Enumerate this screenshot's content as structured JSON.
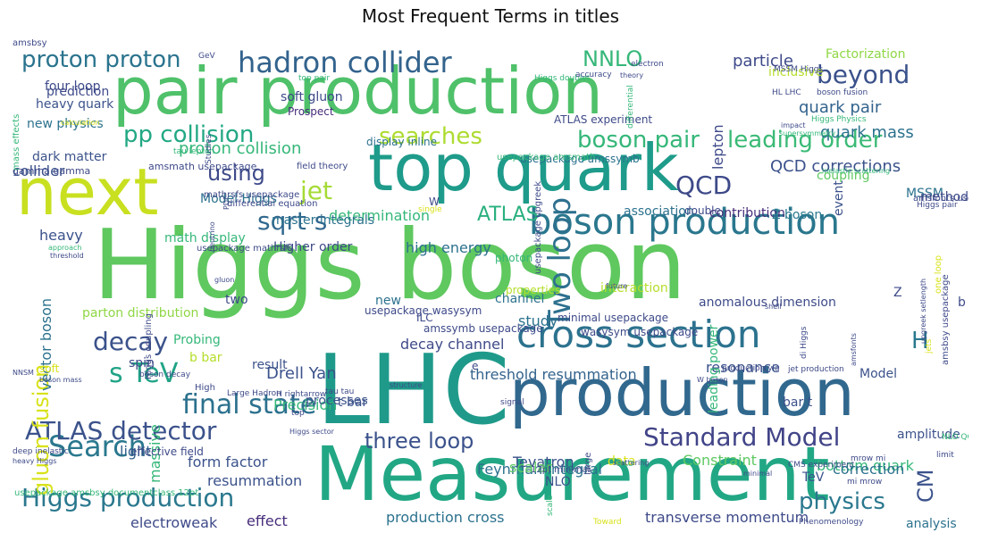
{
  "title": "Most Frequent Terms in titles",
  "words": [
    {
      "text": "Higgs boson",
      "color": "#5fc85f"
    },
    {
      "text": "pair production",
      "color": "#4fc16a"
    },
    {
      "text": "LHC",
      "color": "#1f9a8a"
    },
    {
      "text": "Measurement",
      "color": "#22a785"
    },
    {
      "text": "top quark",
      "color": "#1e9b8a"
    },
    {
      "text": "next",
      "color": "#c8e020"
    },
    {
      "text": "production",
      "color": "#31688e"
    },
    {
      "text": "cross section",
      "color": "#2c728e"
    },
    {
      "text": "boson production",
      "color": "#2a778e"
    },
    {
      "text": "hadron collider",
      "color": "#33638d"
    },
    {
      "text": "Search",
      "color": "#2a788e"
    },
    {
      "text": "ATLAS detector",
      "color": "#3b528b"
    },
    {
      "text": "Higgs production",
      "color": "#2a788e"
    },
    {
      "text": "Standard Model",
      "color": "#414487"
    },
    {
      "text": "final state",
      "color": "#2c718e"
    },
    {
      "text": "s TeV",
      "color": "#20a386"
    },
    {
      "text": "proton proton",
      "color": "#2b748e"
    },
    {
      "text": "pp collision",
      "color": "#22a884"
    },
    {
      "text": "sqrt s",
      "color": "#31688e"
    },
    {
      "text": "Two loop",
      "color": "#2d708e"
    },
    {
      "text": "boson pair",
      "color": "#35b779"
    },
    {
      "text": "leading order",
      "color": "#3aba76"
    },
    {
      "text": "searches",
      "color": "#addc30"
    },
    {
      "text": "QCD",
      "color": "#3e4a89"
    },
    {
      "text": "decay",
      "color": "#3b528b"
    },
    {
      "text": "physics",
      "color": "#2a788e"
    },
    {
      "text": "three loop",
      "color": "#3b528b"
    },
    {
      "text": "beyond",
      "color": "#3b528b"
    },
    {
      "text": "NNLO",
      "color": "#35b779"
    },
    {
      "text": "jet",
      "color": "#a5db36"
    },
    {
      "text": "using",
      "color": "#3e4a89"
    },
    {
      "text": "ATLAS",
      "color": "#2ab07f"
    },
    {
      "text": "gluon fusion",
      "color": "#d8e219"
    },
    {
      "text": "H",
      "color": "#2a788e"
    },
    {
      "text": "CM",
      "color": "#3b528b"
    },
    {
      "text": "QCD corrections",
      "color": "#3b528b"
    },
    {
      "text": "proton collision",
      "color": "#35b779"
    },
    {
      "text": "particle",
      "color": "#3e4a89"
    },
    {
      "text": "quark pair",
      "color": "#33638d"
    },
    {
      "text": "quark mass",
      "color": "#2c728e"
    },
    {
      "text": "Drell Yan",
      "color": "#3b528b"
    },
    {
      "text": "Precision",
      "color": "#35b779"
    },
    {
      "text": "Feynman integral",
      "color": "#2c728e"
    },
    {
      "text": "Tevatron",
      "color": "#3b528b"
    },
    {
      "text": "bottom quark",
      "color": "#35b779"
    },
    {
      "text": "correction",
      "color": "#2c728e"
    },
    {
      "text": "transverse momentum",
      "color": "#3e4a89"
    },
    {
      "text": "production cross",
      "color": "#2c728e"
    },
    {
      "text": "electroweak",
      "color": "#3e4a89"
    },
    {
      "text": "effect",
      "color": "#472d7b"
    },
    {
      "text": "analysis",
      "color": "#2c728e"
    },
    {
      "text": "resummation",
      "color": "#3b528b"
    },
    {
      "text": "form factor",
      "color": "#3b528b"
    },
    {
      "text": "light",
      "color": "#33638d"
    },
    {
      "text": "Constraint",
      "color": "#5ec962"
    },
    {
      "text": "data",
      "color": "#d8e219"
    },
    {
      "text": "scalar",
      "color": "#5ec962"
    },
    {
      "text": "amplitude",
      "color": "#3b528b"
    },
    {
      "text": "threshold resummation",
      "color": "#33638d"
    },
    {
      "text": "resonance",
      "color": "#3b528b"
    },
    {
      "text": "decay channel",
      "color": "#3e4a89"
    },
    {
      "text": "study",
      "color": "#2c728e"
    },
    {
      "text": "high energy",
      "color": "#2c728e"
    },
    {
      "text": "determination",
      "color": "#35b779"
    },
    {
      "text": "association",
      "color": "#2c728e"
    },
    {
      "text": "contribution",
      "color": "#472d7b"
    },
    {
      "text": "Z boson",
      "color": "#2a788e"
    },
    {
      "text": "MSSM",
      "color": "#2c728e"
    },
    {
      "text": "method",
      "color": "#3e4a89"
    },
    {
      "text": "coupling",
      "color": "#5ec962"
    },
    {
      "text": "Factorization",
      "color": "#8fd744"
    },
    {
      "text": "inclusive",
      "color": "#b5de2b"
    },
    {
      "text": "Model Higgs",
      "color": "#2c728e"
    },
    {
      "text": "heavy",
      "color": "#3b528b"
    },
    {
      "text": "vector boson",
      "color": "#2c728e"
    },
    {
      "text": "spin",
      "color": "#3e4a89"
    },
    {
      "text": "Probing",
      "color": "#35b779"
    },
    {
      "text": "b bar",
      "color": "#b5de2b"
    },
    {
      "text": "result",
      "color": "#3b528b"
    },
    {
      "text": "two",
      "color": "#3e4a89"
    },
    {
      "text": "new",
      "color": "#2c728e"
    },
    {
      "text": "parton distribution",
      "color": "#8fd744"
    },
    {
      "text": "master integrals",
      "color": "#2c728e"
    },
    {
      "text": "math display",
      "color": "#35b779"
    },
    {
      "text": "Higher order",
      "color": "#3e4a89"
    },
    {
      "text": "collider",
      "color": "#3b528b"
    },
    {
      "text": "new physics",
      "color": "#2c728e"
    },
    {
      "text": "dark matter",
      "color": "#3b528b"
    },
    {
      "text": "heavy quark",
      "color": "#3b528b"
    },
    {
      "text": "prediction",
      "color": "#3e4a89"
    },
    {
      "text": "four loop",
      "color": "#3e4a89"
    },
    {
      "text": "soft gluon",
      "color": "#3e4a89"
    },
    {
      "text": "Prospect",
      "color": "#472d7b"
    },
    {
      "text": "processes",
      "color": "#3b528b"
    },
    {
      "text": "t bar",
      "color": "#3b528b"
    },
    {
      "text": "bar t",
      "color": "#3b528b"
    },
    {
      "text": "Model",
      "color": "#3b528b"
    },
    {
      "text": "lepton",
      "color": "#3e4a89"
    },
    {
      "text": "TeV",
      "color": "#3b528b"
    },
    {
      "text": "NLO",
      "color": "#3b528b"
    },
    {
      "text": "channel",
      "color": "#2c728e"
    },
    {
      "text": "massive",
      "color": "#35b779"
    },
    {
      "text": "soft",
      "color": "#d8e219"
    },
    {
      "text": "event",
      "color": "#3b528b"
    },
    {
      "text": "leading power",
      "color": "#35b779"
    },
    {
      "text": "anomalous dimension",
      "color": "#3e4a89"
    },
    {
      "text": "interaction",
      "color": "#b5de2b"
    },
    {
      "text": "ATLAS experiment",
      "color": "#3e4a89"
    },
    {
      "text": "display inline",
      "color": "#2c728e"
    },
    {
      "text": "usepackage amssymb",
      "color": "#2c728e"
    },
    {
      "text": "amssymb usepackage",
      "color": "#3e4a89"
    },
    {
      "text": "usepackage wasysym",
      "color": "#3e4a89"
    },
    {
      "text": "minimal usepackage",
      "color": "#3e4a89"
    },
    {
      "text": "wasysym usepackage",
      "color": "#3e4a89"
    },
    {
      "text": "usepackage amsbsy documentclass 12pt",
      "color": "#35b779"
    },
    {
      "text": "effective field",
      "color": "#3e4a89"
    },
    {
      "text": "gamma gamma",
      "color": "#3e4a89"
    },
    {
      "text": "amsmath usepackage",
      "color": "#3e4a89"
    },
    {
      "text": "field theory",
      "color": "#3e4a89"
    },
    {
      "text": "usepackage amsmath",
      "color": "#35b779"
    },
    {
      "text": "mathrsfs usepackage",
      "color": "#3e4a89"
    },
    {
      "text": "usepackage upgreek",
      "color": "#3e4a89"
    },
    {
      "text": "amsbsy usepackage",
      "color": "#3e4a89"
    },
    {
      "text": "usepackage mathrsfs",
      "color": "#3e4a89"
    },
    {
      "text": "Higgs coupling",
      "color": "#3e4a89"
    },
    {
      "text": "Higgs sector",
      "color": "#3e4a89"
    },
    {
      "text": "12pt minimal",
      "color": "#3e4a89"
    },
    {
      "text": "Large Hadron",
      "color": "#3e4a89"
    },
    {
      "text": "H rightarrow",
      "color": "#3e4a89"
    },
    {
      "text": "boson decay",
      "color": "#3e4a89"
    },
    {
      "text": "boson mass",
      "color": "#3e4a89"
    },
    {
      "text": "tau tau",
      "color": "#3e4a89"
    },
    {
      "text": "tau lepton",
      "color": "#35b779"
    },
    {
      "text": "top pair",
      "color": "#35b779"
    },
    {
      "text": "Higgs doublet",
      "color": "#35b779"
    },
    {
      "text": "electron",
      "color": "#3e4a89"
    },
    {
      "text": "GeV",
      "color": "#3e4a89"
    },
    {
      "text": "MSSM Higgs",
      "color": "#3e4a89"
    },
    {
      "text": "HL LHC",
      "color": "#3e4a89"
    },
    {
      "text": "boson fusion",
      "color": "#3e4a89"
    },
    {
      "text": "Higgs pair",
      "color": "#3e4a89"
    },
    {
      "text": "Higgs Physics",
      "color": "#35b779"
    },
    {
      "text": "supersymmetry",
      "color": "#35b779"
    },
    {
      "text": "CMS experiment",
      "color": "#3e4a89"
    },
    {
      "text": "production via",
      "color": "#3e4a89"
    },
    {
      "text": "jet production",
      "color": "#3e4a89"
    },
    {
      "text": "mrow mi",
      "color": "#3e4a89"
    },
    {
      "text": "mi mrow",
      "color": "#3e4a89"
    },
    {
      "text": "Phenomenology",
      "color": "#3e4a89"
    },
    {
      "text": "Toward",
      "color": "#d8e219"
    },
    {
      "text": "limit",
      "color": "#3e4a89"
    },
    {
      "text": "NLO QCD",
      "color": "#35b779"
    },
    {
      "text": "deep inelastic",
      "color": "#3e4a89"
    },
    {
      "text": "heavy Higgs",
      "color": "#3e4a89"
    },
    {
      "text": "approach",
      "color": "#35b779"
    },
    {
      "text": "threshold",
      "color": "#3e4a89"
    },
    {
      "text": "NNSM",
      "color": "#3e4a89"
    },
    {
      "text": "Studies",
      "color": "#3e4a89"
    },
    {
      "text": "calculation",
      "color": "#d8e219"
    },
    {
      "text": "mass effects",
      "color": "#35b779"
    },
    {
      "text": "photon",
      "color": "#35b779"
    },
    {
      "text": "ILC",
      "color": "#3e4a89"
    },
    {
      "text": "properties",
      "color": "#b5de2b"
    },
    {
      "text": "future",
      "color": "#3e4a89"
    },
    {
      "text": "shell",
      "color": "#3e4a89"
    },
    {
      "text": "minimal",
      "color": "#3e4a89"
    },
    {
      "text": "scale",
      "color": "#35b779"
    },
    {
      "text": "signal",
      "color": "#3e4a89"
    },
    {
      "text": "large",
      "color": "#3e4a89"
    },
    {
      "text": "scattering",
      "color": "#3e4a89"
    },
    {
      "text": "W boson",
      "color": "#3e4a89"
    },
    {
      "text": "accuracy",
      "color": "#3e4a89"
    },
    {
      "text": "theory",
      "color": "#3e4a89"
    },
    {
      "text": "differential",
      "color": "#35b779"
    },
    {
      "text": "impact",
      "color": "#3e4a89"
    },
    {
      "text": "inelastic scattering",
      "color": "#35b779"
    },
    {
      "text": "amsfonts usepackage",
      "color": "#3e4a89"
    },
    {
      "text": "one loop",
      "color": "#d8e219"
    },
    {
      "text": "upgreek setlength",
      "color": "#3e4a89"
    },
    {
      "text": "structure",
      "color": "#3e4a89"
    },
    {
      "text": "neutrino",
      "color": "#3e4a89"
    },
    {
      "text": "single",
      "color": "#d8e219"
    },
    {
      "text": "PDF",
      "color": "#3e4a89"
    },
    {
      "text": "gluon",
      "color": "#3e4a89"
    },
    {
      "text": "double",
      "color": "#3e4a89"
    },
    {
      "text": "W",
      "color": "#3e4a89"
    },
    {
      "text": "Z",
      "color": "#3e4a89"
    },
    {
      "text": "b",
      "color": "#3e4a89"
    },
    {
      "text": "e",
      "color": "#3e4a89"
    },
    {
      "text": "N LO",
      "color": "#35b779"
    },
    {
      "text": "top",
      "color": "#3e4a89"
    },
    {
      "text": "High",
      "color": "#3e4a89"
    },
    {
      "text": "di Higgs",
      "color": "#3e4a89"
    },
    {
      "text": "differential equation",
      "color": "#3e4a89"
    },
    {
      "text": "jets",
      "color": "#d8e219"
    },
    {
      "text": "amsfonts",
      "color": "#3e4a89"
    },
    {
      "text": "amsbsy",
      "color": "#3e4a89"
    }
  ]
}
